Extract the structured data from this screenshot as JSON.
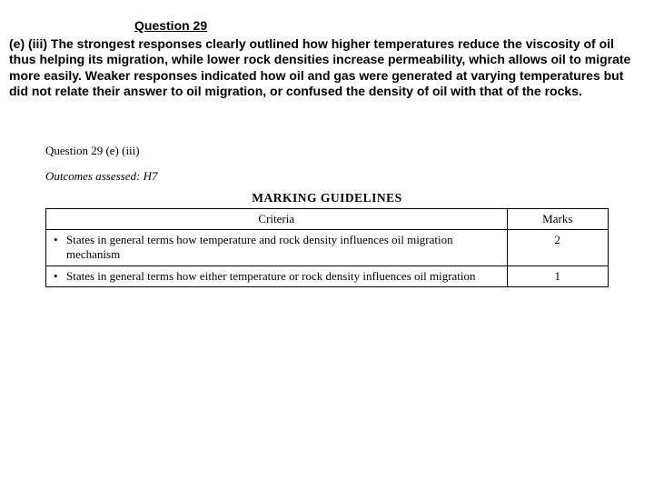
{
  "heading": "Question 29",
  "commentary_prefix": "(e) (iii) ",
  "commentary": "The strongest responses clearly outlined how higher temperatures reduce the viscosity of oil thus helping its migration, while lower rock densities increase permeability, which allows oil to migrate more easily. Weaker responses indicated how oil and gas were generated at varying temperatures but did not relate their answer to oil migration, or confused the density of oil with that of the rocks.",
  "sub_question_label": "Question 29 (e) (iii)",
  "outcomes_label": "Outcomes assessed: H7",
  "marking_title": "MARKING GUIDELINES",
  "table": {
    "headers": {
      "criteria": "Criteria",
      "marks": "Marks"
    },
    "rows": [
      {
        "criterion": "States in general terms how temperature and rock density influences oil migration mechanism",
        "marks": "2"
      },
      {
        "criterion": "States in general terms how either temperature or rock density influences oil migration",
        "marks": "1"
      }
    ]
  },
  "colors": {
    "text": "#000000",
    "background": "#ffffff",
    "border": "#000000"
  }
}
